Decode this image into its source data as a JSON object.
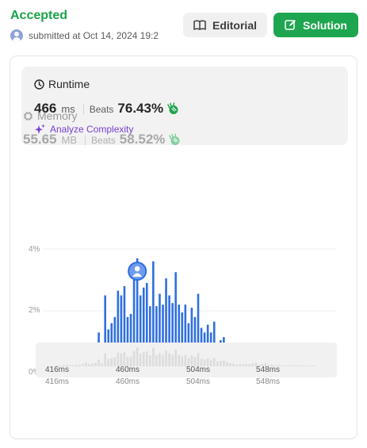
{
  "header": {
    "status": "Accepted",
    "submitted": "submitted at Oct 14, 2024 19:2",
    "editorial_label": "Editorial",
    "solution_label": "Solution"
  },
  "runtime": {
    "title": "Runtime",
    "value": "466",
    "unit": "ms",
    "beats_label": "Beats",
    "beats_pct": "76.43%",
    "analyze_label": "Analyze Complexity"
  },
  "memory": {
    "title": "Memory",
    "value": "55.65",
    "unit": "MB",
    "beats_label": "Beats",
    "beats_pct": "58.52%"
  },
  "colors": {
    "accepted": "#1aa34a",
    "solution_button": "#1ea54f",
    "bar": "#2f6fe0",
    "analyze": "#7a3fd1"
  },
  "icons": {
    "avatar": "user-avatar-icon",
    "editorial": "book-icon",
    "solution": "edit-icon",
    "runtime": "clock-icon",
    "beats": "clap-hand-icon",
    "analyze": "sparkle-icon",
    "memory": "chip-icon",
    "marker": "user-marker-icon"
  },
  "chart_data": {
    "type": "bar",
    "y_ticks": [
      "4%",
      "2%",
      "0%"
    ],
    "x_ticks": [
      "416ms",
      "460ms",
      "504ms",
      "548ms"
    ],
    "ylim": [
      0,
      4
    ],
    "highlight_value": 466,
    "bars": [
      {
        "x": 416,
        "y": 0.15
      },
      {
        "x": 418,
        "y": 0.15
      },
      {
        "x": 420,
        "y": 0.18
      },
      {
        "x": 422,
        "y": 0.25
      },
      {
        "x": 424,
        "y": 0.25
      },
      {
        "x": 426,
        "y": 0.2
      },
      {
        "x": 428,
        "y": 0.35
      },
      {
        "x": 430,
        "y": 0.3
      },
      {
        "x": 432,
        "y": 0.45
      },
      {
        "x": 434,
        "y": 0.75
      },
      {
        "x": 436,
        "y": 0.4
      },
      {
        "x": 438,
        "y": 0.55
      },
      {
        "x": 440,
        "y": 0.7
      },
      {
        "x": 442,
        "y": 1.3
      },
      {
        "x": 444,
        "y": 0.6
      },
      {
        "x": 446,
        "y": 2.5
      },
      {
        "x": 448,
        "y": 1.4
      },
      {
        "x": 450,
        "y": 1.6
      },
      {
        "x": 452,
        "y": 1.8
      },
      {
        "x": 454,
        "y": 2.65
      },
      {
        "x": 456,
        "y": 2.5
      },
      {
        "x": 458,
        "y": 2.8
      },
      {
        "x": 460,
        "y": 1.8
      },
      {
        "x": 462,
        "y": 1.9
      },
      {
        "x": 464,
        "y": 3.0
      },
      {
        "x": 466,
        "y": 3.7
      },
      {
        "x": 468,
        "y": 2.5
      },
      {
        "x": 470,
        "y": 2.75
      },
      {
        "x": 472,
        "y": 2.9
      },
      {
        "x": 474,
        "y": 2.15
      },
      {
        "x": 476,
        "y": 3.6
      },
      {
        "x": 478,
        "y": 2.15
      },
      {
        "x": 480,
        "y": 2.55
      },
      {
        "x": 482,
        "y": 2.2
      },
      {
        "x": 484,
        "y": 3.05
      },
      {
        "x": 486,
        "y": 2.5
      },
      {
        "x": 488,
        "y": 2.25
      },
      {
        "x": 490,
        "y": 3.25
      },
      {
        "x": 492,
        "y": 2.2
      },
      {
        "x": 494,
        "y": 1.95
      },
      {
        "x": 496,
        "y": 2.2
      },
      {
        "x": 498,
        "y": 1.6
      },
      {
        "x": 500,
        "y": 2.1
      },
      {
        "x": 502,
        "y": 1.8
      },
      {
        "x": 504,
        "y": 2.55
      },
      {
        "x": 506,
        "y": 1.45
      },
      {
        "x": 508,
        "y": 1.3
      },
      {
        "x": 510,
        "y": 1.55
      },
      {
        "x": 512,
        "y": 1.3
      },
      {
        "x": 514,
        "y": 1.65
      },
      {
        "x": 516,
        "y": 0.95
      },
      {
        "x": 518,
        "y": 1.05
      },
      {
        "x": 520,
        "y": 1.15
      },
      {
        "x": 522,
        "y": 0.85
      },
      {
        "x": 524,
        "y": 0.6
      },
      {
        "x": 526,
        "y": 0.5
      },
      {
        "x": 528,
        "y": 0.3
      },
      {
        "x": 530,
        "y": 0.45
      },
      {
        "x": 532,
        "y": 0.35
      },
      {
        "x": 534,
        "y": 0.5
      },
      {
        "x": 536,
        "y": 0.4
      },
      {
        "x": 538,
        "y": 0.55
      },
      {
        "x": 540,
        "y": 0.75
      },
      {
        "x": 542,
        "y": 0.35
      },
      {
        "x": 544,
        "y": 0.45
      },
      {
        "x": 546,
        "y": 0.65
      },
      {
        "x": 548,
        "y": 0.3
      },
      {
        "x": 550,
        "y": 0.3
      },
      {
        "x": 552,
        "y": 0.2
      },
      {
        "x": 554,
        "y": 0.25
      },
      {
        "x": 556,
        "y": 0.15
      },
      {
        "x": 558,
        "y": 0.15
      },
      {
        "x": 560,
        "y": 0.2
      },
      {
        "x": 562,
        "y": 0.15
      },
      {
        "x": 564,
        "y": 0.25
      },
      {
        "x": 566,
        "y": 0.2
      },
      {
        "x": 568,
        "y": 0.15
      },
      {
        "x": 570,
        "y": 0.15
      },
      {
        "x": 572,
        "y": 0.15
      },
      {
        "x": 574,
        "y": 0.15
      },
      {
        "x": 576,
        "y": 0.15
      }
    ],
    "navigator_ticks": [
      "416ms",
      "460ms",
      "504ms",
      "548ms"
    ]
  }
}
